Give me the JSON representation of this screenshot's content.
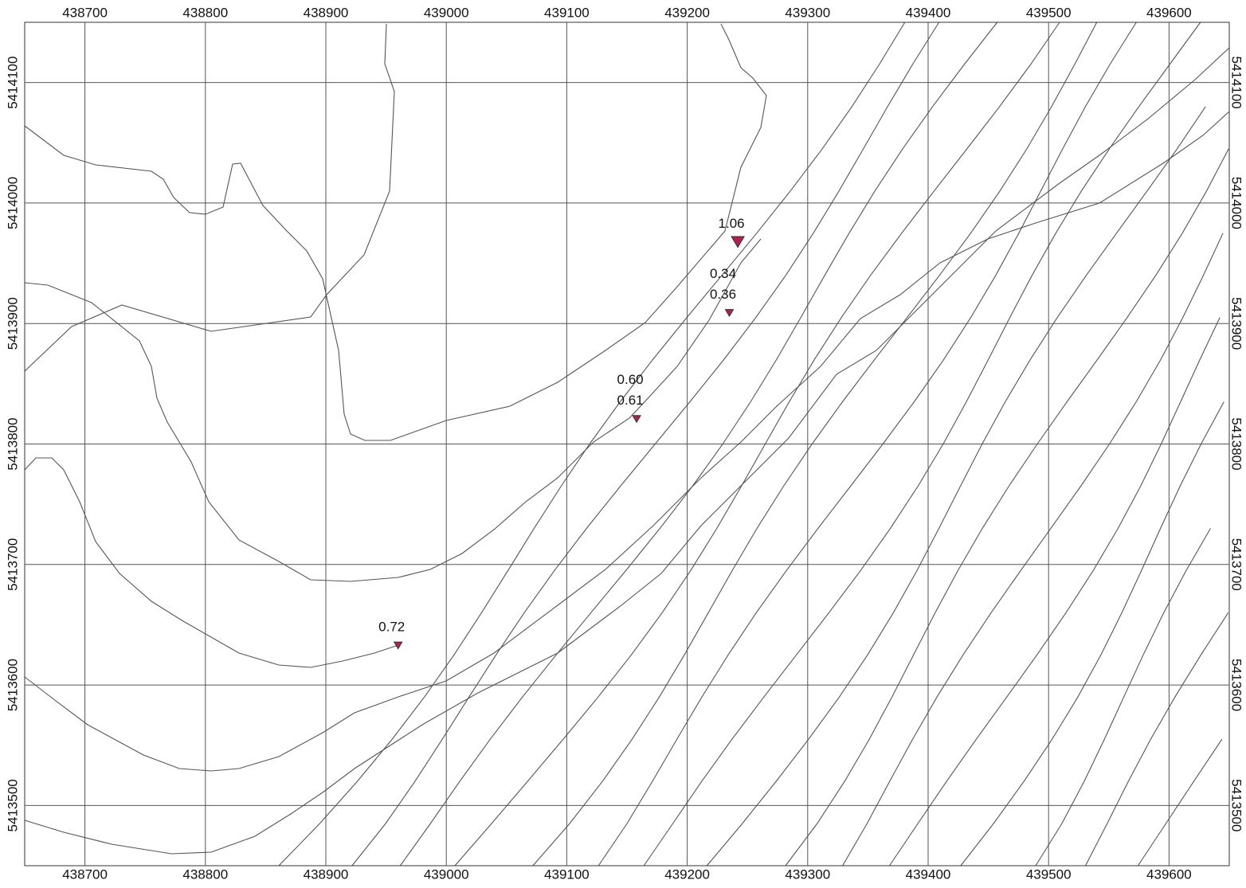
{
  "map": {
    "xlim": [
      438650,
      439650
    ],
    "ylim": [
      5413450,
      5414150
    ],
    "xticks": [
      438700,
      438800,
      438900,
      439000,
      439100,
      439200,
      439300,
      439400,
      439500,
      439600
    ],
    "yticks": [
      5413500,
      5413600,
      5413700,
      5413800,
      5413900,
      5414000,
      5414100
    ],
    "grid": true,
    "marker_color": "#b51f4c",
    "points": [
      {
        "x": 439242,
        "y": 5413968,
        "labels": [
          "1.06"
        ]
      },
      {
        "x": 439235,
        "y": 5413909,
        "labels": [
          "0.34",
          "0.36"
        ]
      },
      {
        "x": 439158,
        "y": 5413821,
        "labels": [
          "0.60",
          "0.61"
        ]
      },
      {
        "x": 438960,
        "y": 5413633,
        "labels": [
          "0.72"
        ]
      }
    ]
  }
}
